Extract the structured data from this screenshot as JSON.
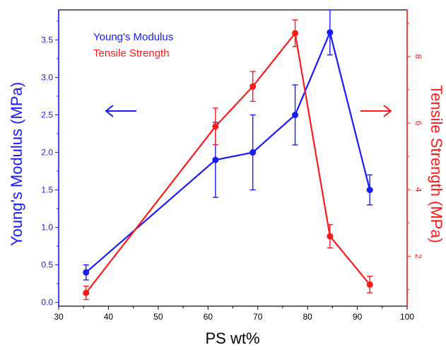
{
  "chart_data": {
    "type": "line",
    "xlabel": "PS wt%",
    "xlim": [
      30,
      100
    ],
    "xticks": [
      30,
      40,
      50,
      60,
      70,
      80,
      90,
      100
    ],
    "left_axis": {
      "label": "Young's Modulus (MPa)",
      "lim": [
        -0.05,
        3.9
      ],
      "ticks": [
        0.0,
        0.5,
        1.0,
        1.5,
        2.0,
        2.5,
        3.0,
        3.5
      ],
      "tick_labels": [
        "0.0",
        "0.5",
        "1.0",
        "1.5",
        "2.0",
        "2.5",
        "3.0",
        "3.5"
      ],
      "color": "#1a1aff"
    },
    "right_axis": {
      "label": "Tensile Strength (MPa)",
      "lim": [
        0.5,
        9.4
      ],
      "ticks": [
        2,
        4,
        6,
        8
      ],
      "tick_labels": [
        "2",
        "4",
        "6",
        "8"
      ],
      "color": "#ff1a1a"
    },
    "series": [
      {
        "name": "Young's Modulus",
        "axis": "left",
        "color": "#1a1aff",
        "x": [
          35.5,
          61.5,
          69.0,
          77.5,
          84.5,
          92.5
        ],
        "y": [
          0.4,
          1.9,
          2.0,
          2.5,
          3.6,
          1.5
        ],
        "err": [
          0.1,
          0.5,
          0.5,
          0.4,
          0.3,
          0.2
        ]
      },
      {
        "name": "Tensile Strength",
        "axis": "right",
        "color": "#ff1a1a",
        "x": [
          35.5,
          61.5,
          69.0,
          77.5,
          84.5,
          92.5
        ],
        "y": [
          0.9,
          5.9,
          7.1,
          8.7,
          2.6,
          1.15
        ],
        "err": [
          0.2,
          0.55,
          0.45,
          0.4,
          0.35,
          0.25
        ]
      }
    ],
    "legend_position": "top-left",
    "annotations": [
      {
        "type": "arrow",
        "direction": "left",
        "color": "#1a1aff"
      },
      {
        "type": "arrow",
        "direction": "right",
        "color": "#ff1a1a"
      }
    ],
    "grid": false
  }
}
